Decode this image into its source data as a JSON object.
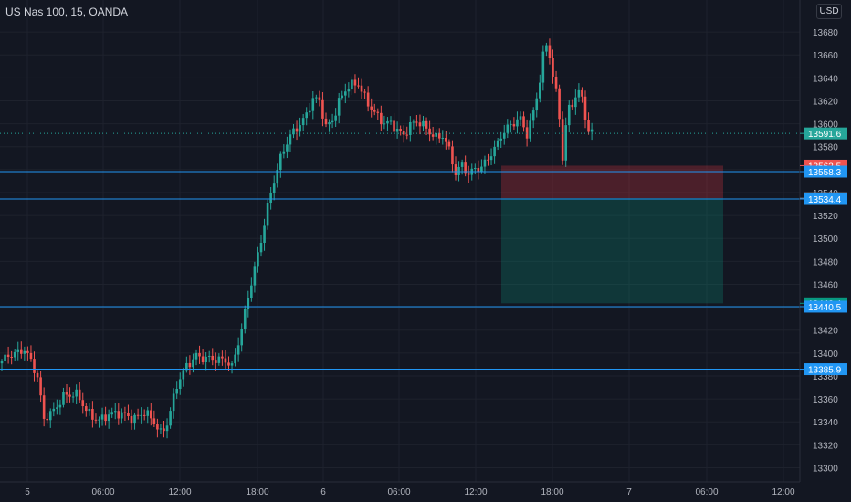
{
  "header": {
    "symbol_title": "US Nas 100, 15, OANDA",
    "currency": "USD"
  },
  "chart_data": {
    "type": "candlestick",
    "ylim": [
      13290,
      13700
    ],
    "y_ticks": [
      13300,
      13320,
      13340,
      13360,
      13380,
      13400,
      13420,
      13440,
      13460,
      13480,
      13500,
      13520,
      13540,
      13560,
      13580,
      13600,
      13620,
      13640,
      13660,
      13680
    ],
    "x_ticks": [
      "5",
      "06:00",
      "12:00",
      "18:00",
      "6",
      "06:00",
      "12:00",
      "18:00",
      "7",
      "06:00",
      "12:00"
    ],
    "last_price": {
      "label": "13591.6",
      "value": 13591.6
    },
    "horizontal_lines": [
      {
        "label": "13558.3",
        "value": 13558.3
      },
      {
        "label": "13534.4",
        "value": 13534.4
      },
      {
        "label": "13440.5",
        "value": 13440.5
      },
      {
        "label": "13385.9",
        "value": 13385.9
      }
    ],
    "position_tool": {
      "stop_label": "13563.5",
      "stop": 13563.5,
      "entry_label": "13535.1",
      "entry": 13535.1,
      "target_label": "13443.4",
      "target": 13443.4
    },
    "colors": {
      "up": "#26a69a",
      "down": "#ef5350",
      "line": "#2196f3",
      "grid": "#1e222d",
      "background": "#131722"
    }
  }
}
